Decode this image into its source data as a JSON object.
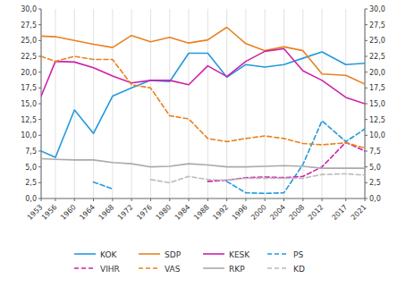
{
  "chart_data": {
    "type": "line",
    "x": [
      1953,
      1956,
      1960,
      1964,
      1968,
      1972,
      1976,
      1980,
      1984,
      1988,
      1992,
      1996,
      2000,
      2004,
      2008,
      2012,
      2017,
      2021
    ],
    "xlim": [
      1953,
      2021
    ],
    "xticks": [
      1953,
      1956,
      1960,
      1964,
      1968,
      1972,
      1976,
      1980,
      1984,
      1988,
      1992,
      1996,
      2000,
      2004,
      2008,
      2012,
      2017,
      2021
    ],
    "ylim": [
      0,
      30
    ],
    "yticks": [
      {
        "value": 0.0,
        "label": "0,0"
      },
      {
        "value": 2.5,
        "label": "2,5"
      },
      {
        "value": 5.0,
        "label": "5,0"
      },
      {
        "value": 7.5,
        "label": "7,5"
      },
      {
        "value": 10.0,
        "label": "10,0"
      },
      {
        "value": 12.5,
        "label": "12,5"
      },
      {
        "value": 15.0,
        "label": "15,0"
      },
      {
        "value": 17.5,
        "label": "17,5"
      },
      {
        "value": 20.0,
        "label": "20,0"
      },
      {
        "value": 22.5,
        "label": "22,5"
      },
      {
        "value": 25.0,
        "label": "25,0"
      },
      {
        "value": 27.5,
        "label": "27,5"
      },
      {
        "value": 30.0,
        "label": "30,0"
      }
    ],
    "y2lim": [
      0,
      30
    ],
    "y2ticks": [
      {
        "value": 0.0,
        "label": "0,0"
      },
      {
        "value": 2.5,
        "label": "2,5"
      },
      {
        "value": 5.0,
        "label": "5,0"
      },
      {
        "value": 7.5,
        "label": "7,5"
      },
      {
        "value": 10.0,
        "label": "10,0"
      },
      {
        "value": 12.5,
        "label": "12,5"
      },
      {
        "value": 15.0,
        "label": "15,0"
      },
      {
        "value": 17.5,
        "label": "17,5"
      },
      {
        "value": 20.0,
        "label": "20,0"
      },
      {
        "value": 22.5,
        "label": "22,5"
      },
      {
        "value": 25.0,
        "label": "25,0"
      },
      {
        "value": 27.5,
        "label": "27,5"
      },
      {
        "value": 30.0,
        "label": "30,0"
      }
    ],
    "grid": "x",
    "legend": "bottom",
    "series": [
      {
        "name": "KOK",
        "color": "#2299dd",
        "line_style": "solid",
        "values": [
          7.5,
          6.5,
          14.0,
          10.3,
          16.2,
          17.5,
          18.7,
          18.5,
          23.0,
          23.0,
          19.2,
          21.2,
          20.8,
          21.2,
          22.2,
          23.2,
          21.2,
          21.4
        ]
      },
      {
        "name": "SDP",
        "color": "#e8821e",
        "line_style": "solid",
        "values": [
          25.7,
          25.6,
          25.0,
          24.4,
          23.9,
          25.8,
          24.8,
          25.5,
          24.6,
          25.1,
          27.1,
          24.5,
          23.4,
          24.0,
          23.4,
          19.7,
          19.5,
          18.1
        ]
      },
      {
        "name": "KESK",
        "color": "#cc22aa",
        "line_style": "solid",
        "values": [
          16.2,
          21.7,
          21.6,
          20.7,
          19.4,
          18.3,
          18.7,
          18.7,
          18.0,
          21.0,
          19.3,
          21.7,
          23.3,
          23.7,
          20.2,
          18.7,
          16.0,
          15.0
        ]
      },
      {
        "name": "PS",
        "color": "#2299dd",
        "line_style": "dashed",
        "values": [
          null,
          null,
          null,
          2.6,
          1.5,
          null,
          null,
          null,
          null,
          null,
          2.7,
          0.9,
          0.8,
          0.9,
          5.4,
          12.3,
          9.0,
          11.0
        ]
      },
      {
        "name": "VIHR",
        "color": "#cc22aa",
        "line_style": "dashed",
        "values": [
          null,
          null,
          null,
          null,
          null,
          null,
          null,
          null,
          null,
          2.7,
          2.9,
          3.3,
          3.4,
          3.3,
          3.5,
          5.0,
          8.9,
          7.5
        ]
      },
      {
        "name": "VAS",
        "color": "#e8821e",
        "line_style": "dashed",
        "values": [
          22.5,
          21.7,
          22.5,
          22.0,
          22.0,
          18.0,
          17.5,
          13.1,
          12.6,
          9.5,
          9.0,
          9.5,
          9.9,
          9.5,
          8.7,
          8.5,
          8.8,
          8.0
        ]
      },
      {
        "name": "RKP",
        "color": "#aaaaaa",
        "line_style": "solid",
        "values": [
          6.3,
          6.2,
          6.1,
          6.1,
          5.7,
          5.5,
          5.0,
          5.1,
          5.5,
          5.3,
          5.0,
          5.0,
          5.1,
          5.2,
          5.1,
          4.8,
          4.8,
          4.8
        ]
      },
      {
        "name": "KD",
        "color": "#bbbbbb",
        "line_style": "dashed",
        "values": [
          null,
          null,
          null,
          null,
          null,
          null,
          3.0,
          2.5,
          3.5,
          3.0,
          2.9,
          3.2,
          3.2,
          3.2,
          3.2,
          3.8,
          3.9,
          3.7
        ]
      }
    ]
  }
}
